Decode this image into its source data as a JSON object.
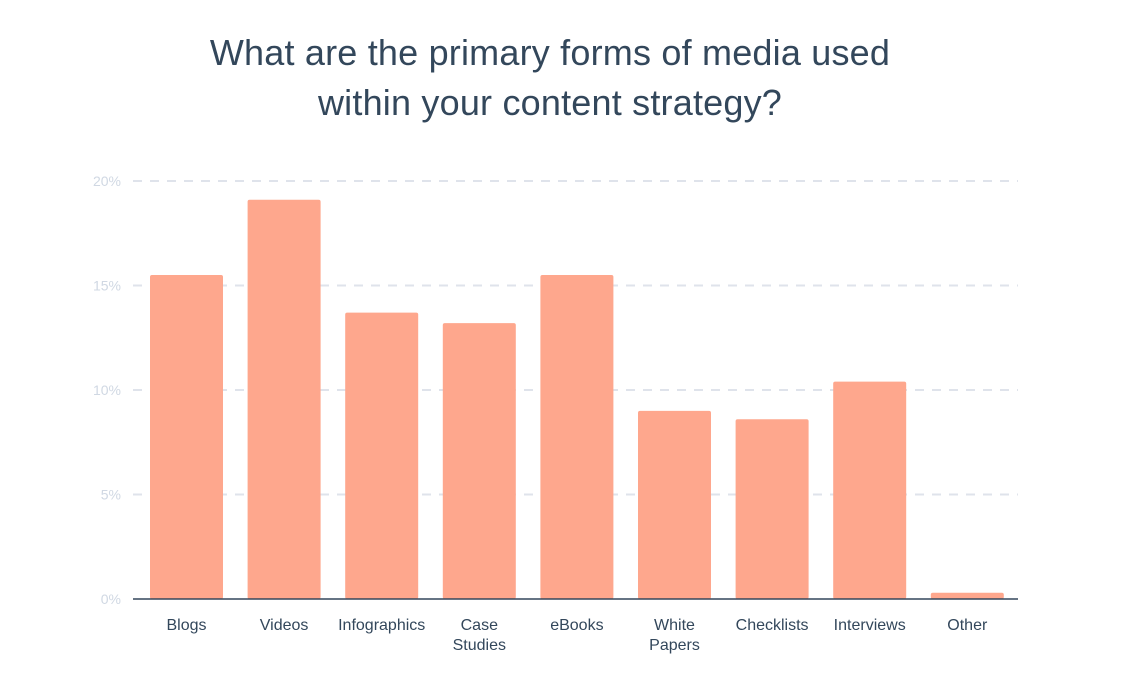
{
  "chart_data": {
    "type": "bar",
    "title": "What are the primary forms of media used within your content strategy?",
    "title_lines": [
      "What are the primary forms of media used",
      "within your content strategy?"
    ],
    "categories": [
      "Blogs",
      "Videos",
      "Infographics",
      "Case Studies",
      "eBooks",
      "White Papers",
      "Checklists",
      "Interviews",
      "Other"
    ],
    "category_lines": [
      [
        "Blogs"
      ],
      [
        "Videos"
      ],
      [
        "Infographics"
      ],
      [
        "Case",
        "Studies"
      ],
      [
        "eBooks"
      ],
      [
        "White",
        "Papers"
      ],
      [
        "Checklists"
      ],
      [
        "Interviews"
      ],
      [
        "Other"
      ]
    ],
    "values": [
      15.5,
      19.1,
      13.7,
      13.2,
      15.5,
      9.0,
      8.6,
      10.4,
      0.3
    ],
    "ylim": [
      0,
      20
    ],
    "yticks": [
      0,
      5,
      10,
      15,
      20
    ],
    "ytick_labels": [
      "0%",
      "5%",
      "10%",
      "15%",
      "20%"
    ],
    "xlabel": "",
    "ylabel": "",
    "grid": true,
    "colors": {
      "bar": "#fea78d",
      "grid": "#dfe3eb",
      "axis": "#33475b",
      "tick_text": "#d0d8e3",
      "category_text": "#33475b",
      "title_text": "#33475b"
    }
  }
}
